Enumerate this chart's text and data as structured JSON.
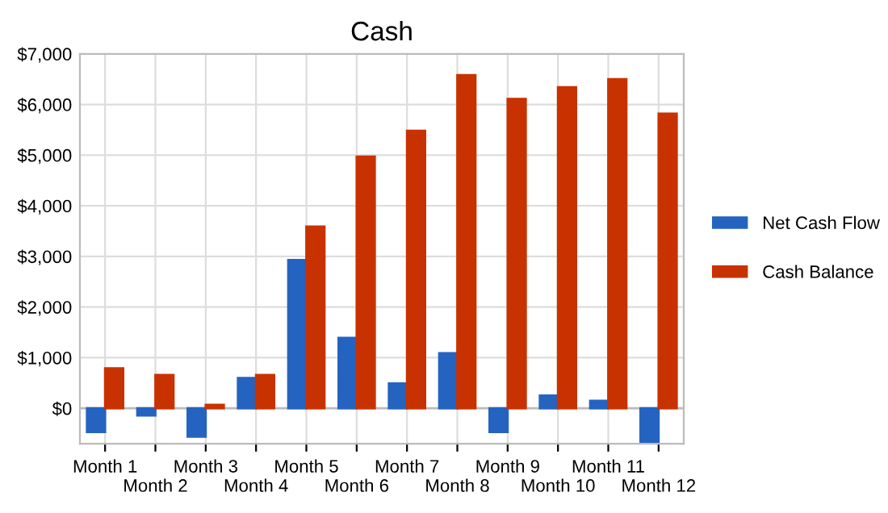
{
  "chart_data": {
    "type": "bar",
    "title": "Cash",
    "categories": [
      "Month 1",
      "Month 2",
      "Month 3",
      "Month 4",
      "Month 5",
      "Month 6",
      "Month 7",
      "Month 8",
      "Month 9",
      "Month 10",
      "Month 11",
      "Month 12"
    ],
    "series": [
      {
        "name": "Net Cash Flow",
        "color": "#2563c0",
        "values": [
          -470,
          -140,
          -560,
          600,
          2930,
          1390,
          490,
          1090,
          -470,
          250,
          150,
          -660
        ]
      },
      {
        "name": "Cash Balance",
        "color": "#c83200",
        "values": [
          790,
          660,
          70,
          660,
          3590,
          4970,
          5480,
          6580,
          6110,
          6340,
          6500,
          5820
        ]
      }
    ],
    "ylim": [
      -700,
      7000
    ],
    "yticks": [
      {
        "value": 0,
        "label": "$0"
      },
      {
        "value": 1000,
        "label": "$1,000"
      },
      {
        "value": 2000,
        "label": "$2,000"
      },
      {
        "value": 3000,
        "label": "$3,000"
      },
      {
        "value": 4000,
        "label": "$4,000"
      },
      {
        "value": 5000,
        "label": "$5,000"
      },
      {
        "value": 6000,
        "label": "$6,000"
      },
      {
        "value": 7000,
        "label": "$7,000"
      }
    ],
    "grid": true,
    "legend": "right"
  }
}
